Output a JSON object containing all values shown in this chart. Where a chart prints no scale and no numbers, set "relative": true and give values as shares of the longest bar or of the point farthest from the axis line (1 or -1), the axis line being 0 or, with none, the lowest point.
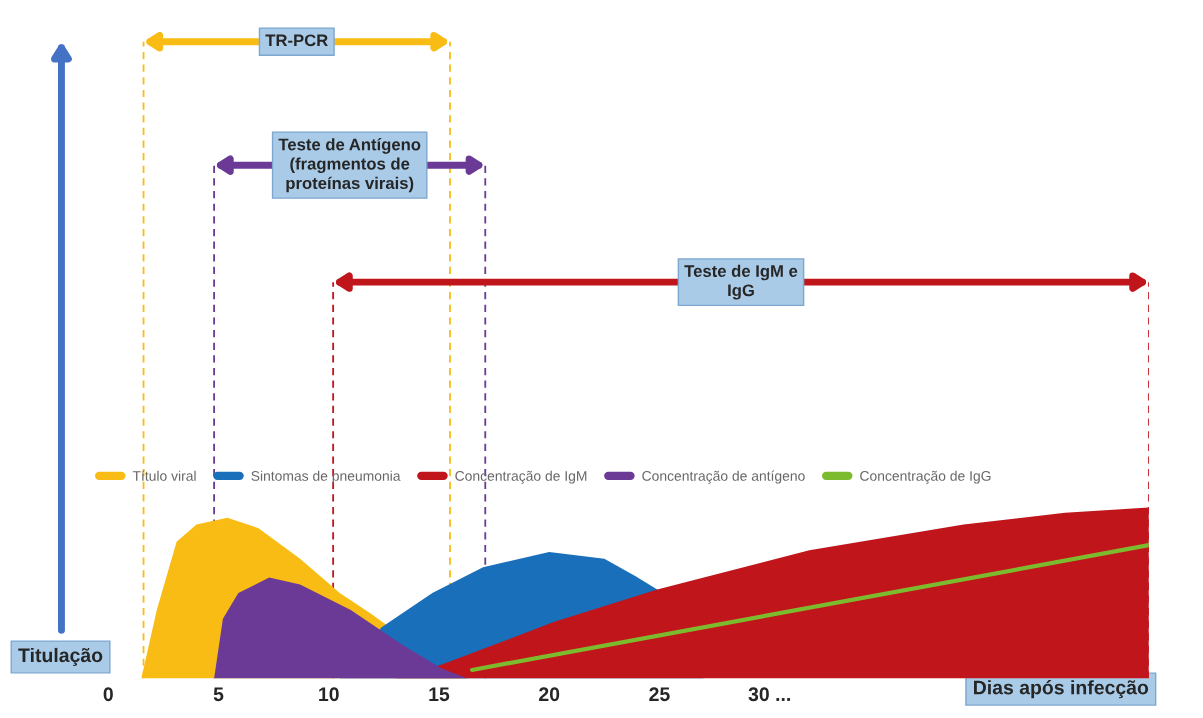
{
  "chart_data": {
    "type": "area",
    "relative": true,
    "xlabel": "Dias após infecção",
    "ylabel": "Titulação",
    "xlim": [
      0,
      47.2
    ],
    "xticks": [
      0,
      5,
      10,
      15,
      20,
      25,
      {
        "value": 30,
        "label": "30 ..."
      }
    ],
    "legend": "center",
    "grid": false,
    "series": [
      {
        "name": "Título viral",
        "color": "#f9bc15",
        "x": [
          1.5,
          2.2,
          3.1,
          4.0,
          5.4,
          6.8,
          8.7,
          10.5,
          11.9,
          16.0
        ],
        "values": [
          0,
          0.4,
          0.8,
          0.9,
          0.94,
          0.88,
          0.7,
          0.5,
          0.38,
          0
        ]
      },
      {
        "name": "Sintomas de pneumonia",
        "color": "#1a6fba",
        "x": [
          10.5,
          12.4,
          14.7,
          17.0,
          20.0,
          22.5,
          23.9,
          24.9,
          27.0
        ],
        "values": [
          0,
          0.3,
          0.5,
          0.65,
          0.74,
          0.7,
          0.6,
          0.52,
          0
        ]
      },
      {
        "name": "Concentração de IgM",
        "color": "#c0161b",
        "x": [
          13.0,
          15.1,
          20.2,
          24.9,
          31.8,
          38.8,
          43.4,
          47.2
        ],
        "values": [
          0,
          0.08,
          0.33,
          0.52,
          0.75,
          0.9,
          0.97,
          1.0
        ]
      },
      {
        "name": "Concentração de antígeno",
        "color": "#6a3a96",
        "x": [
          4.8,
          5.2,
          5.9,
          7.3,
          8.7,
          11.0,
          13.3,
          15.1,
          16.3
        ],
        "values": [
          0,
          0.35,
          0.5,
          0.59,
          0.55,
          0.4,
          0.2,
          0.06,
          0
        ]
      },
      {
        "name": "Concentração de IgG",
        "color": "#7dbb2e",
        "type": "line",
        "x": [
          16.5,
          47.2
        ],
        "values": [
          0.05,
          0.78
        ]
      }
    ],
    "ref_lines": [
      {
        "axis": "x",
        "value": 1.6,
        "color": "#f9bc15",
        "line_style": "dashed"
      },
      {
        "axis": "x",
        "value": 15.5,
        "color": "#f9bc15",
        "line_style": "dashed"
      },
      {
        "axis": "x",
        "value": 4.8,
        "color": "#6a3a96",
        "line_style": "dashed"
      },
      {
        "axis": "x",
        "value": 17.1,
        "color": "#6a3a96",
        "line_style": "dashed"
      },
      {
        "axis": "x",
        "value": 10.2,
        "color": "#c0161b",
        "line_style": "dashed"
      },
      {
        "axis": "x",
        "value": 47.2,
        "color": "#c0161b",
        "line_style": "dashed"
      }
    ],
    "annotations": [
      "TR-PCR",
      "Teste de Antígeno\n(fragmentos de\nproteínas virais)",
      "Teste de IgM e\nIgG"
    ]
  }
}
